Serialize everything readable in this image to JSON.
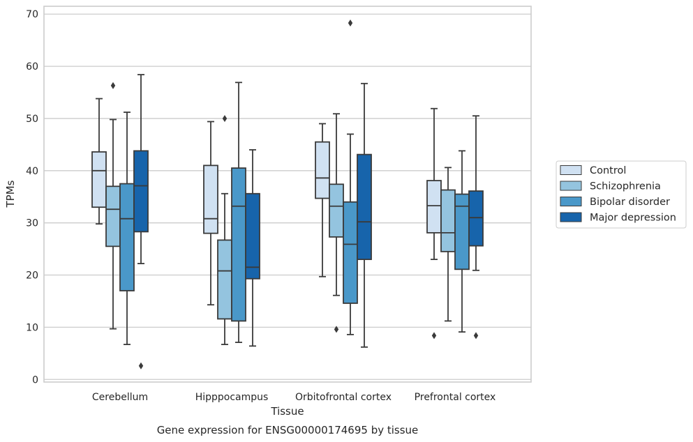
{
  "chart_data": {
    "type": "box",
    "title": "",
    "caption": "Gene expression for ENSG00000174695 by tissue",
    "xlabel": "Tissue",
    "ylabel": "TPMs",
    "ylim": [
      -0.5,
      71.5
    ],
    "yticks": [
      0,
      10,
      20,
      30,
      40,
      50,
      60,
      70
    ],
    "grid": "horizontal",
    "legend_position": "right",
    "categories": [
      "Cerebellum",
      "Hipppocampus",
      "Orbitofrontal cortex",
      "Prefrontal cortex"
    ],
    "series": [
      {
        "name": "Control",
        "color": "#d0e1f2",
        "boxes": [
          {
            "whisker_low": 29.8,
            "q1": 33.0,
            "median": 40.0,
            "q3": 43.6,
            "whisker_high": 53.8,
            "outliers": []
          },
          {
            "whisker_low": 14.3,
            "q1": 28.0,
            "median": 30.8,
            "q3": 41.0,
            "whisker_high": 49.4,
            "outliers": []
          },
          {
            "whisker_low": 19.7,
            "q1": 34.7,
            "median": 38.6,
            "q3": 45.5,
            "whisker_high": 49.0,
            "outliers": []
          },
          {
            "whisker_low": 23.0,
            "q1": 28.1,
            "median": 33.3,
            "q3": 38.1,
            "whisker_high": 51.9,
            "outliers": [
              8.4
            ]
          }
        ]
      },
      {
        "name": "Schizophrenia",
        "color": "#94c4df",
        "boxes": [
          {
            "whisker_low": 9.7,
            "q1": 25.5,
            "median": 32.6,
            "q3": 37.0,
            "whisker_high": 49.8,
            "outliers": [
              56.3
            ]
          },
          {
            "whisker_low": 6.7,
            "q1": 11.6,
            "median": 20.8,
            "q3": 26.7,
            "whisker_high": 35.6,
            "outliers": [
              50.0
            ]
          },
          {
            "whisker_low": 16.1,
            "q1": 27.3,
            "median": 33.2,
            "q3": 37.4,
            "whisker_high": 50.9,
            "outliers": [
              9.6
            ]
          },
          {
            "whisker_low": 11.2,
            "q1": 24.5,
            "median": 28.1,
            "q3": 36.3,
            "whisker_high": 40.6,
            "outliers": []
          }
        ]
      },
      {
        "name": "Bipolar disorder",
        "color": "#4a98c9",
        "boxes": [
          {
            "whisker_low": 6.7,
            "q1": 17.0,
            "median": 30.8,
            "q3": 37.5,
            "whisker_high": 51.2,
            "outliers": []
          },
          {
            "whisker_low": 7.1,
            "q1": 11.2,
            "median": 33.2,
            "q3": 40.5,
            "whisker_high": 56.9,
            "outliers": []
          },
          {
            "whisker_low": 8.6,
            "q1": 14.6,
            "median": 25.9,
            "q3": 34.0,
            "whisker_high": 47.0,
            "outliers": [
              68.3
            ]
          },
          {
            "whisker_low": 9.1,
            "q1": 21.1,
            "median": 33.2,
            "q3": 35.5,
            "whisker_high": 43.8,
            "outliers": []
          }
        ]
      },
      {
        "name": "Major depression",
        "color": "#1764ab",
        "boxes": [
          {
            "whisker_low": 22.2,
            "q1": 28.3,
            "median": 37.1,
            "q3": 43.8,
            "whisker_high": 58.4,
            "outliers": [
              2.6
            ]
          },
          {
            "whisker_low": 6.4,
            "q1": 19.3,
            "median": 21.5,
            "q3": 35.6,
            "whisker_high": 44.0,
            "outliers": []
          },
          {
            "whisker_low": 6.2,
            "q1": 23.0,
            "median": 30.2,
            "q3": 43.1,
            "whisker_high": 56.7,
            "outliers": []
          },
          {
            "whisker_low": 20.9,
            "q1": 25.6,
            "median": 31.0,
            "q3": 36.1,
            "whisker_high": 50.5,
            "outliers": [
              8.4
            ]
          }
        ]
      }
    ]
  }
}
